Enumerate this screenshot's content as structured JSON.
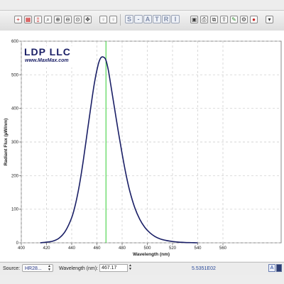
{
  "toolbar": {
    "items": [
      {
        "name": "cursor-tool-icon",
        "glyph": "+",
        "color": "#cc2222"
      },
      {
        "name": "grid-tool-icon",
        "glyph": "▦",
        "color": "#cc2222"
      },
      {
        "name": "bar-tool-icon",
        "glyph": "▯",
        "color": "#cc2222"
      },
      {
        "name": "zoom-box-icon",
        "glyph": "⌕",
        "color": "#333333"
      },
      {
        "name": "zoom-in-icon",
        "glyph": "⊕",
        "color": "#333333"
      },
      {
        "name": "zoom-out-icon",
        "glyph": "⊖",
        "color": "#333333"
      },
      {
        "name": "zoom-fit-icon",
        "glyph": "⊙",
        "color": "#333333"
      },
      {
        "name": "pan-icon",
        "glyph": "✥",
        "color": "#333333"
      },
      {
        "name": "light-probe-icon",
        "glyph": "♀",
        "color": "#8a8a8a"
      },
      {
        "name": "light-probe-2-icon",
        "glyph": "♀",
        "color": "#8a8a8a"
      }
    ],
    "letters": [
      "S",
      "-",
      "A",
      "T",
      "R",
      "I"
    ],
    "right_items": [
      {
        "name": "save-icon",
        "glyph": "▣",
        "color": "#333333"
      },
      {
        "name": "print-icon",
        "glyph": "⎙",
        "color": "#333333"
      },
      {
        "name": "copy-icon",
        "glyph": "⧉",
        "color": "#333333"
      },
      {
        "name": "export-icon",
        "glyph": "⇪",
        "color": "#333333"
      },
      {
        "name": "edit-icon",
        "glyph": "✎",
        "color": "#2a8a2a"
      },
      {
        "name": "settings-icon",
        "glyph": "⚙",
        "color": "#333333"
      },
      {
        "name": "stop-icon",
        "glyph": "●",
        "color": "#cc2222"
      }
    ],
    "dropdown_glyph": "▾"
  },
  "logo": {
    "name": "LDP LLC",
    "url": "www.MaxMax.com"
  },
  "chart_data": {
    "type": "line",
    "xlabel": "Wavelength (nm)",
    "ylabel": "Radiant Flux (µW/nm)",
    "xlim": [
      400,
      550
    ],
    "ylim": [
      0,
      600
    ],
    "xticks": [
      400,
      420,
      440,
      460,
      480,
      500,
      520,
      540,
      560
    ],
    "yticks": [
      0,
      100,
      200,
      300,
      400,
      500,
      600
    ],
    "grid": true,
    "series": [
      {
        "color": "#1a1f66",
        "x": [
          415,
          420,
          425,
          430,
          435,
          440,
          443,
          446,
          449,
          452,
          455,
          458,
          461,
          463,
          465,
          467,
          469,
          471,
          474,
          477,
          480,
          483,
          486,
          490,
          494,
          498,
          502,
          506,
          510,
          515,
          520,
          525,
          530,
          535,
          540
        ],
        "y": [
          0,
          2,
          5,
          14,
          35,
          75,
          115,
          170,
          240,
          320,
          400,
          475,
          530,
          550,
          553,
          545,
          515,
          470,
          400,
          330,
          265,
          205,
          155,
          105,
          70,
          46,
          30,
          19,
          12,
          7,
          4,
          2,
          1,
          0.5,
          0
        ]
      }
    ],
    "cursor_x": 467.17,
    "cursor_color": "#33cc33"
  },
  "statusbar": {
    "source_label": "Source:",
    "source_value": "HR28...",
    "wavelength_label": "Wavelength (nm):",
    "wavelength_value": "467.17",
    "readout": "5.5351E02",
    "mode_glyph": "A"
  }
}
